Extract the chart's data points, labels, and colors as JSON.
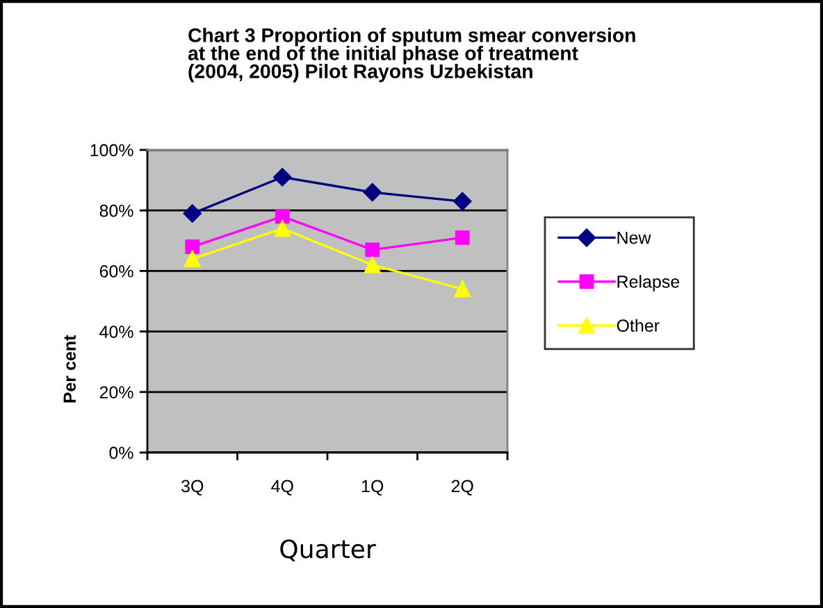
{
  "chart_data": {
    "type": "line",
    "title": "Chart 3 Proportion of sputum smear conversion\nat the end of the initial phase of treatment\n(2004, 2005) Pilot Rayons Uzbekistan",
    "xlabel": "Quarter",
    "ylabel": "Per cent",
    "categories": [
      "3Q",
      "4Q",
      "1Q",
      "2Q"
    ],
    "series": [
      {
        "name": "New",
        "color": "#000080",
        "marker": "diamond",
        "values": [
          79,
          91,
          86,
          83
        ]
      },
      {
        "name": "Relapse",
        "color": "#ff00ff",
        "marker": "square",
        "values": [
          68,
          78,
          67,
          71
        ]
      },
      {
        "name": "Other",
        "color": "#ffff00",
        "marker": "triangle",
        "values": [
          64,
          74,
          62,
          54
        ]
      }
    ],
    "ylim": [
      0,
      100
    ],
    "yticks": [
      {
        "value": 0,
        "label": "0%"
      },
      {
        "value": 20,
        "label": "20%"
      },
      {
        "value": 40,
        "label": "40%"
      },
      {
        "value": 60,
        "label": "60%"
      },
      {
        "value": 80,
        "label": "80%"
      },
      {
        "value": 100,
        "label": "100%"
      }
    ],
    "grid": "y",
    "legend": "right",
    "line_style": "solid"
  }
}
